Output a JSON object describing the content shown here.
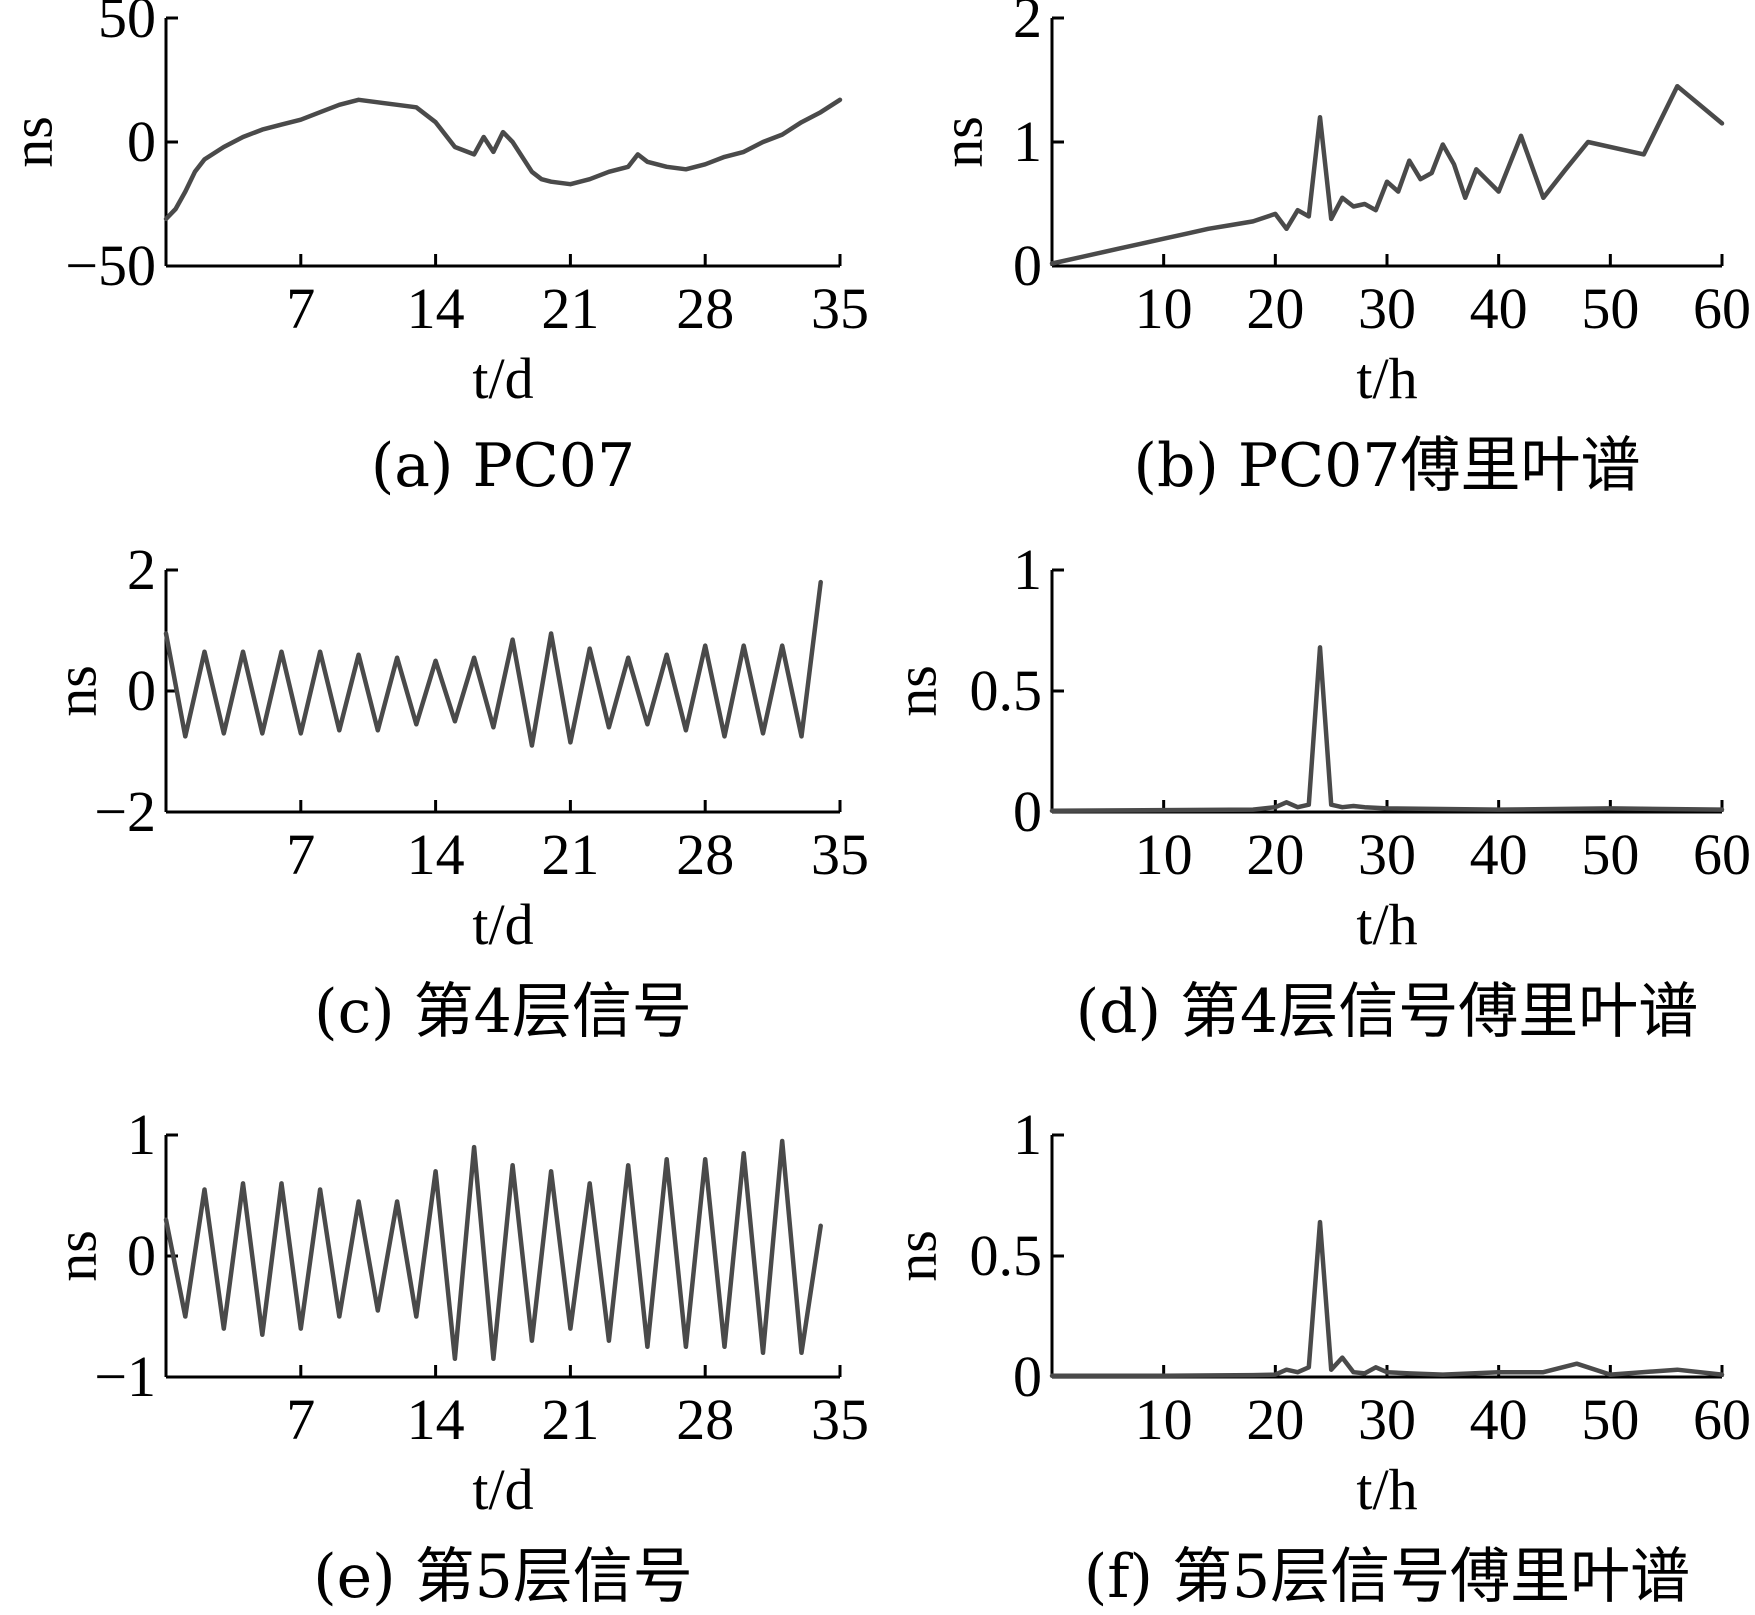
{
  "colors": {
    "series": "#4a4a4a",
    "axis": "#000000",
    "background": "#ffffff"
  },
  "chart_data": [
    {
      "id": "a",
      "type": "line",
      "caption": "(a) PC07",
      "xlabel": "t/d",
      "ylabel": "ns",
      "xlim": [
        0,
        35
      ],
      "ylim": [
        -50,
        50
      ],
      "xticks": [
        7,
        14,
        21,
        28,
        35
      ],
      "xtick_labels": [
        "7",
        "14",
        "21",
        "28",
        "35"
      ],
      "yticks": [
        -50,
        0,
        50
      ],
      "ytick_labels": [
        "−50",
        "0",
        "50"
      ],
      "grid": false,
      "series": [
        {
          "x": [
            0,
            0.5,
            1,
            1.5,
            2,
            3,
            4,
            5,
            6,
            7,
            8,
            9,
            10,
            11,
            12,
            13,
            14,
            15,
            16,
            16.5,
            17,
            17.5,
            18,
            19,
            19.5,
            20,
            21,
            22,
            23,
            24,
            24.5,
            25,
            26,
            27,
            28,
            29,
            30,
            31,
            32,
            33,
            34,
            35
          ],
          "y": [
            -31,
            -27,
            -20,
            -12,
            -7,
            -2,
            2,
            5,
            7,
            9,
            12,
            15,
            17,
            16,
            15,
            14,
            8,
            -2,
            -5,
            2,
            -4,
            4,
            0,
            -12,
            -15,
            -16,
            -17,
            -15,
            -12,
            -10,
            -5,
            -8,
            -10,
            -11,
            -9,
            -6,
            -4,
            0,
            3,
            8,
            12,
            17
          ]
        }
      ]
    },
    {
      "id": "b",
      "type": "line",
      "caption": "(b) PC07傅里叶谱",
      "xlabel": "t/h",
      "ylabel": "ns",
      "xlim": [
        0,
        60
      ],
      "ylim": [
        0,
        2
      ],
      "xticks": [
        10,
        20,
        30,
        40,
        50,
        60
      ],
      "xtick_labels": [
        "10",
        "20",
        "30",
        "40",
        "50",
        "60"
      ],
      "yticks": [
        0,
        1,
        2
      ],
      "ytick_labels": [
        "0",
        "1",
        "2"
      ],
      "grid": false,
      "series": [
        {
          "x": [
            0,
            2,
            4,
            6,
            8,
            10,
            12,
            14,
            16,
            18,
            20,
            21,
            22,
            23,
            24,
            25,
            26,
            27,
            28,
            29,
            30,
            31,
            32,
            33,
            34,
            35,
            36,
            37,
            38,
            40,
            42,
            44,
            46,
            48,
            53,
            56,
            60
          ],
          "y": [
            0.02,
            0.06,
            0.1,
            0.14,
            0.18,
            0.22,
            0.26,
            0.3,
            0.33,
            0.36,
            0.42,
            0.3,
            0.45,
            0.4,
            1.2,
            0.38,
            0.55,
            0.48,
            0.5,
            0.45,
            0.68,
            0.6,
            0.85,
            0.7,
            0.75,
            0.98,
            0.82,
            0.55,
            0.78,
            0.6,
            1.05,
            0.55,
            0.78,
            1.0,
            0.9,
            1.45,
            1.15
          ]
        }
      ]
    },
    {
      "id": "c",
      "type": "line",
      "caption": "(c) 第4层信号",
      "xlabel": "t/d",
      "ylabel": "ns",
      "xlim": [
        0,
        35
      ],
      "ylim": [
        -2,
        2
      ],
      "xticks": [
        7,
        14,
        21,
        28,
        35
      ],
      "xtick_labels": [
        "7",
        "14",
        "21",
        "28",
        "35"
      ],
      "yticks": [
        -2,
        0,
        2
      ],
      "ytick_labels": [
        "−2",
        "0",
        "2"
      ],
      "grid": false,
      "series": [
        {
          "x_start": 0,
          "x_step": 1,
          "y": [
            0.95,
            -0.75,
            0.65,
            -0.7,
            0.65,
            -0.7,
            0.65,
            -0.7,
            0.65,
            -0.65,
            0.6,
            -0.65,
            0.55,
            -0.55,
            0.5,
            -0.5,
            0.55,
            -0.6,
            0.85,
            -0.9,
            0.95,
            -0.85,
            0.7,
            -0.6,
            0.55,
            -0.55,
            0.6,
            -0.65,
            0.75,
            -0.75,
            0.75,
            -0.7,
            0.75,
            -0.75,
            1.8
          ]
        }
      ]
    },
    {
      "id": "d",
      "type": "line",
      "caption": "(d) 第4层信号傅里叶谱",
      "xlabel": "t/h",
      "ylabel": "ns",
      "xlim": [
        0,
        60
      ],
      "ylim": [
        0,
        1
      ],
      "xticks": [
        10,
        20,
        30,
        40,
        50,
        60
      ],
      "xtick_labels": [
        "10",
        "20",
        "30",
        "40",
        "50",
        "60"
      ],
      "yticks": [
        0,
        0.5,
        1
      ],
      "ytick_labels": [
        "0",
        "0.5",
        "1"
      ],
      "grid": false,
      "series": [
        {
          "x": [
            0,
            10,
            18,
            20,
            21,
            22,
            23,
            24,
            25,
            26,
            27,
            28,
            30,
            40,
            50,
            60
          ],
          "y": [
            0.005,
            0.008,
            0.01,
            0.02,
            0.04,
            0.02,
            0.03,
            0.68,
            0.03,
            0.02,
            0.025,
            0.02,
            0.015,
            0.01,
            0.015,
            0.01
          ]
        }
      ]
    },
    {
      "id": "e",
      "type": "line",
      "caption": "(e) 第5层信号",
      "xlabel": "t/d",
      "ylabel": "ns",
      "xlim": [
        0,
        35
      ],
      "ylim": [
        -1,
        1
      ],
      "xticks": [
        7,
        14,
        21,
        28,
        35
      ],
      "xtick_labels": [
        "7",
        "14",
        "21",
        "28",
        "35"
      ],
      "yticks": [
        -1,
        0,
        1
      ],
      "ytick_labels": [
        "−1",
        "0",
        "1"
      ],
      "grid": false,
      "series": [
        {
          "x_start": 0,
          "x_step": 1,
          "y": [
            0.3,
            -0.5,
            0.55,
            -0.6,
            0.6,
            -0.65,
            0.6,
            -0.6,
            0.55,
            -0.5,
            0.45,
            -0.45,
            0.45,
            -0.5,
            0.7,
            -0.85,
            0.9,
            -0.85,
            0.75,
            -0.7,
            0.7,
            -0.6,
            0.6,
            -0.7,
            0.75,
            -0.75,
            0.8,
            -0.75,
            0.8,
            -0.75,
            0.85,
            -0.8,
            0.95,
            -0.8,
            0.25
          ]
        }
      ]
    },
    {
      "id": "f",
      "type": "line",
      "caption": "(f) 第5层信号傅里叶谱",
      "xlabel": "t/h",
      "ylabel": "ns",
      "xlim": [
        0,
        60
      ],
      "ylim": [
        0,
        1
      ],
      "xticks": [
        10,
        20,
        30,
        40,
        50,
        60
      ],
      "xtick_labels": [
        "10",
        "20",
        "30",
        "40",
        "50",
        "60"
      ],
      "yticks": [
        0,
        0.5,
        1
      ],
      "ytick_labels": [
        "0",
        "0.5",
        "1"
      ],
      "grid": false,
      "series": [
        {
          "x": [
            0,
            10,
            18,
            20,
            21,
            22,
            23,
            24,
            25,
            26,
            27,
            28,
            29,
            30,
            32,
            35,
            40,
            44,
            47,
            50,
            56,
            60
          ],
          "y": [
            0.005,
            0.005,
            0.008,
            0.01,
            0.03,
            0.02,
            0.04,
            0.64,
            0.03,
            0.08,
            0.02,
            0.015,
            0.04,
            0.02,
            0.015,
            0.01,
            0.02,
            0.02,
            0.055,
            0.01,
            0.03,
            0.01
          ]
        }
      ]
    }
  ]
}
